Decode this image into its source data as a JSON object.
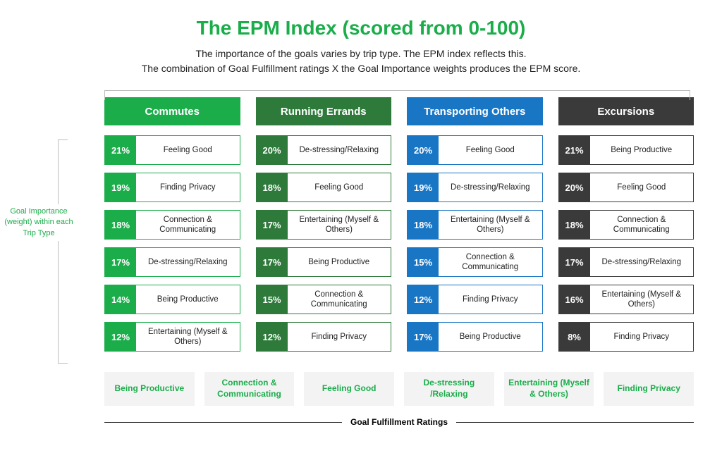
{
  "title": "The EPM Index (scored from 0-100)",
  "title_color": "#1aad4a",
  "subtitle_line1": "The importance of the goals varies by trip type. The EPM index reflects this.",
  "subtitle_line2": "The combination of Goal Fulfillment ratings X the Goal Importance weights produces the EPM score.",
  "left_label": "Goal Importance (weight) within each Trip Type",
  "columns": [
    {
      "header": "Commutes",
      "header_bg": "#1aad4a",
      "pct_bg": "#1aad4a",
      "border": "#1aad4a",
      "rows": [
        {
          "pct": "21%",
          "label": "Feeling Good"
        },
        {
          "pct": "19%",
          "label": "Finding Privacy"
        },
        {
          "pct": "18%",
          "label": "Connection & Communicating"
        },
        {
          "pct": "17%",
          "label": "De-stressing/Relaxing"
        },
        {
          "pct": "14%",
          "label": "Being Productive"
        },
        {
          "pct": "12%",
          "label": "Entertaining (Myself & Others)"
        }
      ]
    },
    {
      "header": "Running Errands",
      "header_bg": "#2d7a3a",
      "pct_bg": "#2d7a3a",
      "border": "#2d7a3a",
      "rows": [
        {
          "pct": "20%",
          "label": "De-stressing/Relaxing"
        },
        {
          "pct": "18%",
          "label": "Feeling Good"
        },
        {
          "pct": "17%",
          "label": "Entertaining (Myself & Others)"
        },
        {
          "pct": "17%",
          "label": "Being Productive"
        },
        {
          "pct": "15%",
          "label": "Connection & Communicating"
        },
        {
          "pct": "12%",
          "label": "Finding Privacy"
        }
      ]
    },
    {
      "header": "Transporting Others",
      "header_bg": "#1976c5",
      "pct_bg": "#1976c5",
      "border": "#1976c5",
      "rows": [
        {
          "pct": "20%",
          "label": "Feeling Good"
        },
        {
          "pct": "19%",
          "label": "De-stressing/Relaxing"
        },
        {
          "pct": "18%",
          "label": "Entertaining (Myself & Others)"
        },
        {
          "pct": "15%",
          "label": "Connection & Communicating"
        },
        {
          "pct": "12%",
          "label": "Finding Privacy"
        },
        {
          "pct": "17%",
          "label": "Being Productive"
        }
      ]
    },
    {
      "header": "Excursions",
      "header_bg": "#3a3a3a",
      "pct_bg": "#3a3a3a",
      "border": "#3a3a3a",
      "rows": [
        {
          "pct": "21%",
          "label": "Being Productive"
        },
        {
          "pct": "20%",
          "label": "Feeling Good"
        },
        {
          "pct": "18%",
          "label": "Connection & Communicating"
        },
        {
          "pct": "17%",
          "label": "De-stressing/Relaxing"
        },
        {
          "pct": "16%",
          "label": "Entertaining (Myself & Others)"
        },
        {
          "pct": "8%",
          "label": "Finding Privacy"
        }
      ]
    }
  ],
  "categories": [
    "Being Productive",
    "Connection & Communicating",
    "Feeling Good",
    "De-stressing /Relaxing",
    "Entertaining (Myself & Others)",
    "Finding Privacy"
  ],
  "bottom_label": "Goal Fulfillment Ratings"
}
